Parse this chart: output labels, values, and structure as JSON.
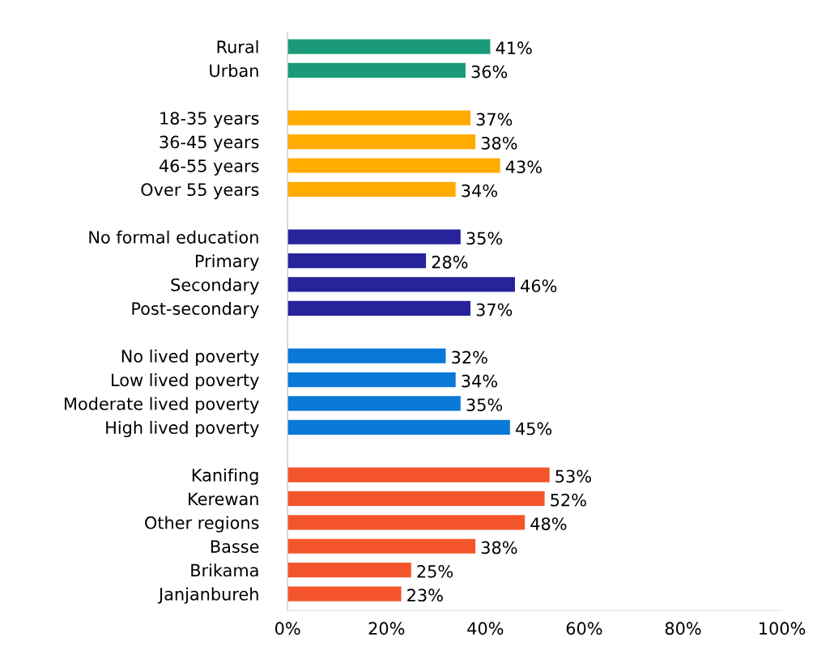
{
  "chart_data": {
    "type": "bar",
    "orientation": "horizontal",
    "categories": [
      "Rural",
      "Urban",
      null,
      "18-35 years",
      "36-45 years",
      "46-55 years",
      "Over 55 years",
      null,
      "No formal education",
      "Primary",
      "Secondary",
      "Post-secondary",
      null,
      "No lived poverty",
      "Low lived poverty",
      "Moderate lived poverty",
      "High lived poverty",
      null,
      "Kanifing",
      "Kerewan",
      "Other regions",
      "Basse",
      "Brikama",
      "Janjanbureh"
    ],
    "values": [
      41,
      36,
      null,
      37,
      38,
      43,
      34,
      null,
      35,
      28,
      46,
      37,
      null,
      32,
      34,
      35,
      45,
      null,
      53,
      52,
      48,
      38,
      25,
      23
    ],
    "colors": [
      "#1a9a78",
      "#1a9a78",
      null,
      "#ffab00",
      "#ffab00",
      "#ffab00",
      "#ffab00",
      null,
      "#26239b",
      "#26239b",
      "#26239b",
      "#26239b",
      null,
      "#0a78d6",
      "#0a78d6",
      "#0a78d6",
      "#0a78d6",
      null,
      "#f4552b",
      "#f4552b",
      "#f4552b",
      "#f4552b",
      "#f4552b",
      "#f4552b"
    ],
    "value_labels": [
      "41%",
      "36%",
      null,
      "37%",
      "38%",
      "43%",
      "34%",
      null,
      "35%",
      "28%",
      "46%",
      "37%",
      null,
      "32%",
      "34%",
      "35%",
      "45%",
      null,
      "53%",
      "52%",
      "48%",
      "38%",
      "25%",
      "23%"
    ],
    "xlim": [
      0,
      100
    ],
    "xticks": [
      {
        "value": 0,
        "label": "0%"
      },
      {
        "value": 20,
        "label": "20%"
      },
      {
        "value": 40,
        "label": "40%"
      },
      {
        "value": 60,
        "label": "60%"
      },
      {
        "value": 80,
        "label": "80%"
      },
      {
        "value": 100,
        "label": "100%"
      }
    ],
    "grid": false
  }
}
